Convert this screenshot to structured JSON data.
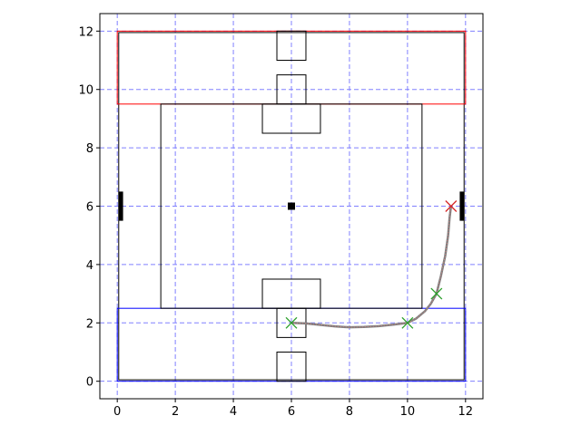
{
  "chart_data": {
    "type": "scatter",
    "title": "",
    "xlabel": "",
    "ylabel": "",
    "xlim": [
      -0.6,
      12.6
    ],
    "ylim": [
      -0.6,
      12.6
    ],
    "xticks": [
      0,
      2,
      4,
      6,
      8,
      10,
      12
    ],
    "yticks": [
      0,
      2,
      4,
      6,
      8,
      10,
      12
    ],
    "grid": true,
    "colors": {
      "grid": "#8080ff",
      "field": "#000000",
      "blue_zone": "#0000ff",
      "red_zone": "#ff0000",
      "path": "#808080",
      "path_overlay": "#d98080",
      "waypoint": "#2ca02c",
      "goal": "#d62728"
    },
    "field_outline": {
      "x0": 0.05,
      "y0": 0.05,
      "x1": 11.95,
      "y1": 11.95
    },
    "rectangles": [
      {
        "name": "field",
        "x0": 0.05,
        "y0": 0.05,
        "x1": 11.95,
        "y1": 11.95,
        "color": "field"
      },
      {
        "name": "blue-zone",
        "x0": 0.0,
        "y0": 0.0,
        "x1": 12.0,
        "y1": 2.5,
        "color": "blue_zone"
      },
      {
        "name": "red-zone",
        "x0": 0.0,
        "y0": 9.5,
        "x1": 12.0,
        "y1": 12.0,
        "color": "red_zone"
      },
      {
        "name": "center-area",
        "x0": 1.5,
        "y0": 2.5,
        "x1": 10.5,
        "y1": 9.5,
        "color": "field"
      },
      {
        "name": "top-goal-box",
        "x0": 5.5,
        "y0": 11.0,
        "x1": 6.5,
        "y1": 12.0,
        "color": "field"
      },
      {
        "name": "top-inner-box",
        "x0": 5.5,
        "y0": 9.5,
        "x1": 6.5,
        "y1": 10.5,
        "color": "field"
      },
      {
        "name": "top-wide-box",
        "x0": 5.0,
        "y0": 8.5,
        "x1": 7.0,
        "y1": 9.5,
        "color": "field"
      },
      {
        "name": "bottom-wide-box",
        "x0": 5.0,
        "y0": 2.5,
        "x1": 7.0,
        "y1": 3.5,
        "color": "field"
      },
      {
        "name": "bottom-inner-box",
        "x0": 5.5,
        "y0": 1.5,
        "x1": 6.5,
        "y1": 2.5,
        "color": "field"
      },
      {
        "name": "bottom-goal-box",
        "x0": 5.5,
        "y0": 0.0,
        "x1": 6.5,
        "y1": 1.0,
        "color": "field"
      }
    ],
    "side_bars": [
      {
        "name": "left-bar",
        "x0": 0.05,
        "x1": 0.2,
        "y0": 5.5,
        "y1": 6.5
      },
      {
        "name": "right-bar",
        "x0": 11.8,
        "x1": 11.95,
        "y0": 5.5,
        "y1": 6.5
      }
    ],
    "center_marker": {
      "x": 6,
      "y": 6
    },
    "path": {
      "x": [
        6.0,
        6.5,
        7.0,
        7.5,
        8.0,
        8.5,
        9.0,
        9.5,
        10.0,
        10.3,
        10.6,
        10.8,
        11.0,
        11.15,
        11.3,
        11.4,
        11.45,
        11.5
      ],
      "y": [
        2.0,
        1.98,
        1.93,
        1.88,
        1.85,
        1.86,
        1.89,
        1.94,
        2.0,
        2.15,
        2.4,
        2.65,
        3.0,
        3.6,
        4.3,
        5.0,
        5.6,
        6.0
      ]
    },
    "waypoints": [
      {
        "x": 6.0,
        "y": 2.0
      },
      {
        "x": 10.0,
        "y": 2.0
      },
      {
        "x": 11.0,
        "y": 3.0
      }
    ],
    "goal": {
      "x": 11.5,
      "y": 6.0
    }
  }
}
